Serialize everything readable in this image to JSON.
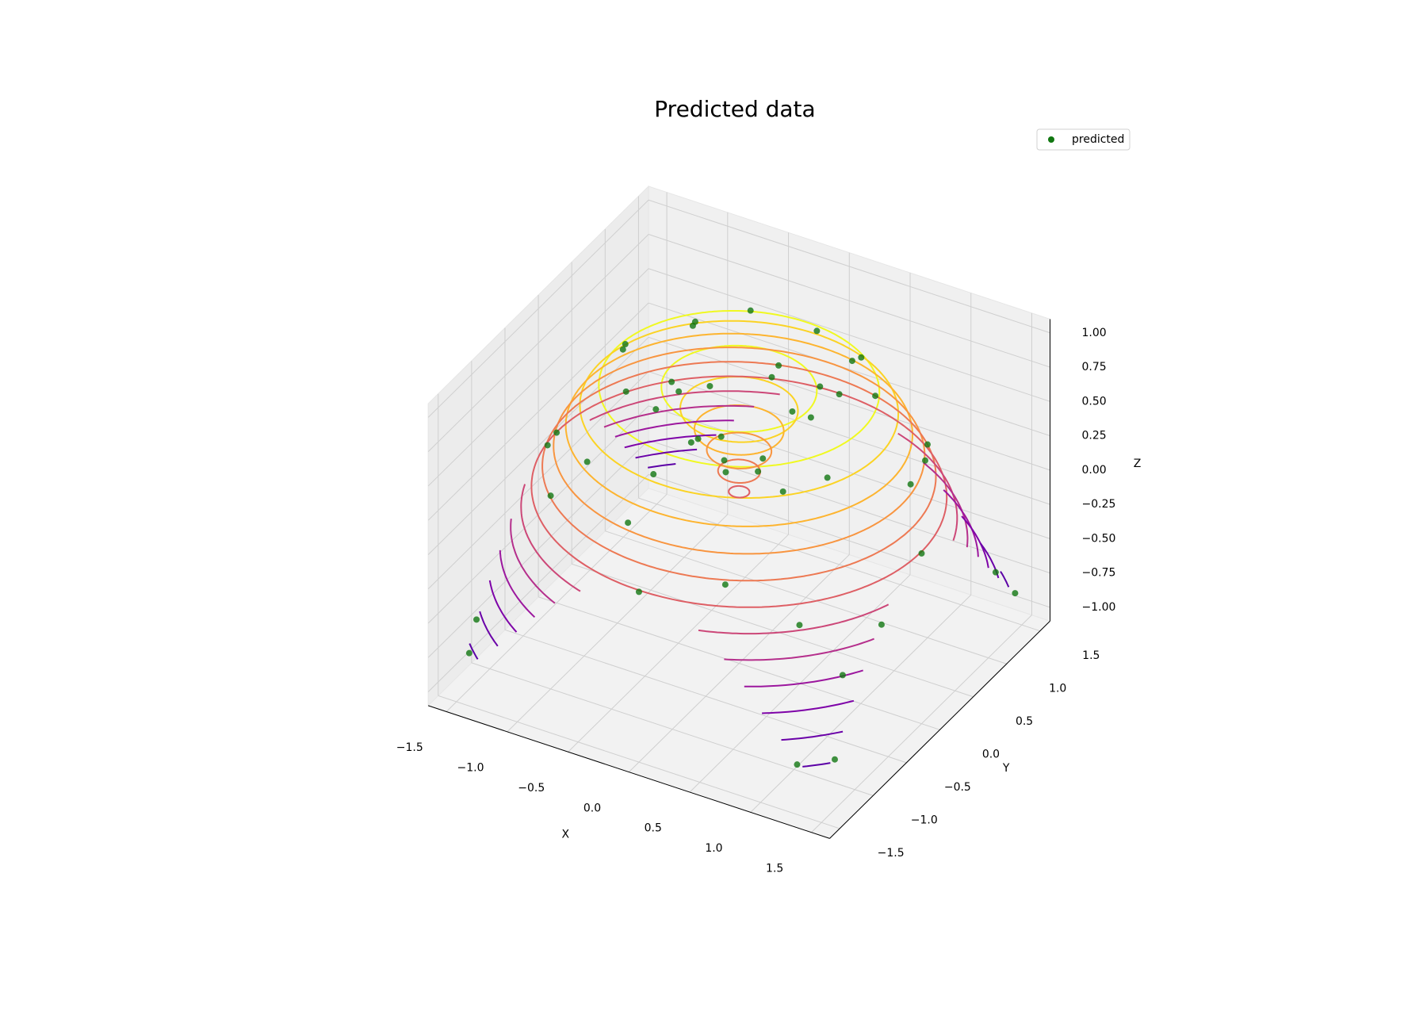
{
  "chart_data": {
    "type": "scatter3d",
    "title": "Predicted data",
    "xlabel": "X",
    "ylabel": "Y",
    "zlabel": "Z",
    "xlim": [
      -1.65,
      1.65
    ],
    "ylim": [
      -1.65,
      1.65
    ],
    "zlim": [
      -1.1,
      1.1
    ],
    "xticks": [
      {
        "value": -1.5,
        "label": "−1.5"
      },
      {
        "value": -1,
        "label": "−1.0"
      },
      {
        "value": -0.5,
        "label": "−0.5"
      },
      {
        "value": 0,
        "label": "0.0"
      },
      0.5,
      {
        "value": 1,
        "label": "1.0"
      },
      1.5
    ],
    "yticks": [
      {
        "value": -1.5,
        "label": "−1.5"
      },
      {
        "value": -1,
        "label": "−1.0"
      },
      {
        "value": -0.5,
        "label": "−0.5"
      },
      {
        "value": 0,
        "label": "0.0"
      },
      0.5,
      {
        "value": 1,
        "label": "1.0"
      },
      1.5
    ],
    "zticks": [
      {
        "value": -1,
        "label": "−1.00"
      },
      {
        "value": -0.75,
        "label": "−0.75"
      },
      {
        "value": -0.5,
        "label": "−0.50"
      },
      {
        "value": -0.25,
        "label": "−0.25"
      },
      {
        "value": 0,
        "label": "0.00"
      },
      0.25,
      {
        "value": 0.5,
        "label": "0.50"
      },
      0.75,
      {
        "value": 1,
        "label": "1.00"
      }
    ],
    "grid": true,
    "legend": "upper right",
    "series": [
      {
        "name": "predicted",
        "color": "#117711",
        "x": [
          0.5,
          -0.6,
          0.7,
          -0.3,
          0.2,
          -0.9,
          0.9,
          -0.4,
          0.1,
          1.0,
          -1.1,
          0.4,
          -0.7,
          1.2,
          -1.3,
          0.6,
          -0.5,
          1.4,
          1.5,
          1.3,
          -1.45,
          -1.5,
          1.5,
          1.45,
          -1.5,
          0.1,
          -0.15,
          0.0,
          0.25,
          -0.2,
          0.3,
          -0.35,
          0.1,
          -0.5,
          0.05,
          1.5,
          1.5,
          0.0,
          -1.5,
          0.0,
          1.1,
          -1.1,
          1.0,
          -1.0,
          0.8,
          -0.8,
          1.3,
          -0.2,
          0.6,
          -0.6
        ],
        "y": [
          0.3,
          0.4,
          -0.2,
          -0.7,
          0.8,
          -0.1,
          0.4,
          0.9,
          -0.9,
          -0.5,
          0.3,
          1.1,
          -1.0,
          0.6,
          -0.5,
          -1.3,
          1.4,
          -1.0,
          -1.3,
          -1.5,
          -1.4,
          -1.2,
          1.4,
          1.2,
          1.45,
          0.1,
          0.05,
          -0.2,
          -0.1,
          -0.25,
          0.25,
          0.2,
          -0.45,
          -0.1,
          0.5,
          0.0,
          -0.6,
          -1.5,
          0.0,
          1.5,
          -1.1,
          1.1,
          1.0,
          -1.0,
          -0.8,
          0.8,
          0.2,
          -1.3,
          0.6,
          -0.6
        ],
        "z": [
          0.919,
          0.992,
          0.993,
          0.999,
          0.997,
          0.971,
          0.921,
          0.921,
          0.971,
          0.786,
          0.759,
          0.718,
          0.643,
          0.442,
          0.348,
          0.274,
          0.166,
          -0.295,
          -0.736,
          -0.736,
          -0.779,
          -0.645,
          -0.821,
          -0.587,
          -0.858,
          0.279,
          0.311,
          0.389,
          0.514,
          0.597,
          0.703,
          0.721,
          0.797,
          0.852,
          0.845,
          0.141,
          -0.09,
          0.141,
          0.141,
          0.141,
          0.03,
          0.03,
          0.308,
          0.308,
          0.77,
          0.77,
          0.49,
          0.49,
          0.992,
          0.992
        ]
      }
    ],
    "contours": [
      {
        "level": 0.9,
        "radius": 0.56,
        "color": "#f0f921"
      },
      {
        "level": 0.9,
        "radius": 1.011,
        "color": "#f0f921"
      },
      {
        "level": 0.75,
        "radius": 0.424,
        "color": "#fbd324"
      },
      {
        "level": 0.75,
        "radius": 1.147,
        "color": "#fbd324"
      },
      {
        "level": 0.6,
        "radius": 0.322,
        "color": "#fdb42f"
      },
      {
        "level": 0.6,
        "radius": 1.249,
        "color": "#fdb42f"
      },
      {
        "level": 0.45,
        "radius": 0.233,
        "color": "#f89540"
      },
      {
        "level": 0.45,
        "radius": 1.337,
        "color": "#f89540"
      },
      {
        "level": 0.3,
        "radius": 0.152,
        "color": "#ed7953"
      },
      {
        "level": 0.3,
        "radius": 1.418,
        "color": "#ed7953"
      },
      {
        "level": 0.15,
        "radius": 0.075,
        "color": "#de5f65"
      },
      {
        "level": 0.15,
        "radius": 1.496,
        "color": "#de5f65"
      },
      {
        "level": 0,
        "radius": 1.571,
        "color": "#cc4778"
      },
      {
        "level": -0.15,
        "radius": 1.646,
        "color": "#b52f8c"
      },
      {
        "level": -0.3,
        "radius": 1.723,
        "color": "#9c179e"
      },
      {
        "level": -0.45,
        "radius": 1.804,
        "color": "#7e03a8"
      },
      {
        "level": -0.6,
        "radius": 1.893,
        "color": "#6a00a8"
      },
      {
        "level": -0.75,
        "radius": 1.995,
        "color": "#5c01a6"
      },
      {
        "level": -0.9,
        "radius": 2.131,
        "color": "#3b049a"
      }
    ]
  }
}
